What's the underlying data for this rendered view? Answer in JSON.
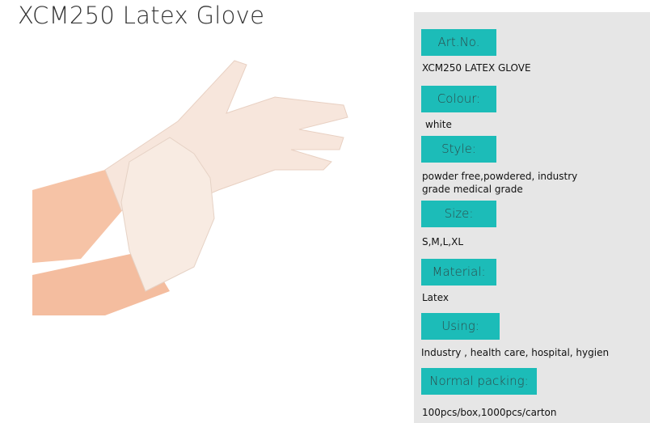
{
  "title": "XCM250 Latex Glove",
  "colors": {
    "label_bg": "#1cbcb8",
    "panel_bg": "#e6e6e6"
  },
  "specs": [
    {
      "label": "Art.No.",
      "value": "XCM250  LATEX GLOVE"
    },
    {
      "label": "Colour:",
      "value": "white"
    },
    {
      "label": "Style:",
      "value": "powder free,powdered, industry grade medical grade"
    },
    {
      "label": "Size:",
      "value": "S,M,L,XL"
    },
    {
      "label": "Material:",
      "value": "Latex"
    },
    {
      "label": "Using:",
      "value": "Industry , health care, hospital, hygien"
    },
    {
      "label": "Normal packing:",
      "value": "100pcs/box,1000pcs/carton"
    }
  ]
}
